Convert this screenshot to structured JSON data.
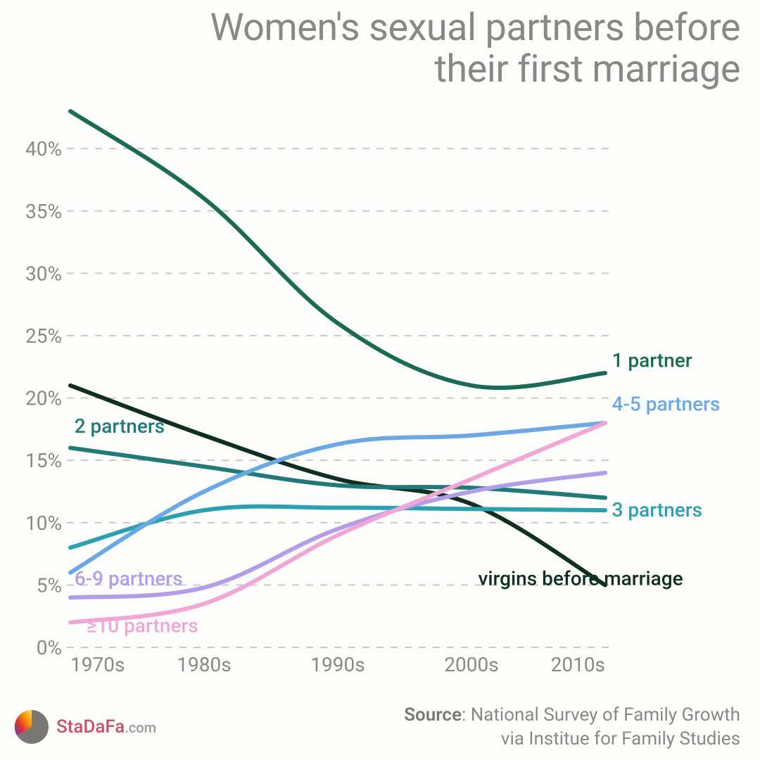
{
  "title_line1": "Women's sexual partners before",
  "title_line2": "their first marriage",
  "title_fontsize": 54,
  "title_color": "#8a8887",
  "background_color": "#fdfdfc",
  "chart": {
    "type": "line",
    "x_categories": [
      "1970s",
      "1980s",
      "1990s",
      "2000s",
      "2010s"
    ],
    "y": {
      "min": 0,
      "max": 43,
      "ticks": [
        0,
        5,
        10,
        15,
        20,
        25,
        30,
        35,
        40
      ],
      "suffix": "%"
    },
    "grid_color": "#c9c9c9",
    "grid_dash": "10 10",
    "line_width": 6,
    "axis_fontsize": 28,
    "axis_color": "#8a8887",
    "label_fontsize": 28,
    "series": [
      {
        "key": "virgins",
        "label": "virgins before marriage",
        "color": "#0f2f22",
        "values": [
          21,
          17,
          13.5,
          11.5,
          5
        ],
        "label_x": 3.05,
        "label_y": 5,
        "label_anchor": "start",
        "inline_label_x": null
      },
      {
        "key": "one",
        "label": "1 partner",
        "color": "#1a6b55",
        "values": [
          43,
          36,
          26,
          21,
          22
        ],
        "label_x": 4.05,
        "label_y": 22.5,
        "label_anchor": "start",
        "inline_label_x": null
      },
      {
        "key": "two",
        "label": "2 partners",
        "color": "#1f7a7a",
        "values": [
          16,
          14.5,
          13,
          12.8,
          12
        ],
        "label_x": 0.03,
        "label_y": 17.2,
        "label_anchor": "start",
        "inline_label_x": null
      },
      {
        "key": "three",
        "label": "3 partners",
        "color": "#2aa0b2",
        "values": [
          8,
          11,
          11.2,
          11.1,
          11
        ],
        "label_x": 4.05,
        "label_y": 10.5,
        "label_anchor": "start",
        "inline_label_x": null
      },
      {
        "key": "four_five",
        "label": "4-5 partners",
        "color": "#6aa9e6",
        "values": [
          6,
          12.5,
          16.3,
          17,
          18
        ],
        "label_x": 4.05,
        "label_y": 19,
        "label_anchor": "start",
        "inline_label_x": null
      },
      {
        "key": "six_nine",
        "label": "6-9 partners",
        "color": "#b19de8",
        "values": [
          4,
          4.8,
          9.5,
          12.5,
          14
        ],
        "label_x": 0.03,
        "label_y": 5,
        "label_anchor": "start",
        "inline_label_x": null
      },
      {
        "key": "ten_plus",
        "label": "≥10 partners",
        "color": "#f2a6d4",
        "values": [
          2,
          3.5,
          9,
          13.5,
          18
        ],
        "label_x": 0.12,
        "label_y": 1.2,
        "label_anchor": "start",
        "inline_label_x": null
      }
    ]
  },
  "logo": {
    "brand": "StaDaFa",
    "domain": ".com",
    "brand_color": "#c94f6c"
  },
  "source_label": "Source",
  "source_line1": "National Survey of Family Growth",
  "source_line2": "via Institue for Family Studies"
}
